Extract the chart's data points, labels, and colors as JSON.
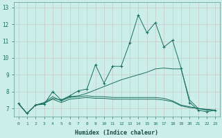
{
  "xlabel": "Humidex (Indice chaleur)",
  "background_color": "#cceee8",
  "grid_color": "#b8d8d4",
  "line_color": "#1a7060",
  "xlim": [
    -0.5,
    23.5
  ],
  "ylim": [
    6.5,
    13.3
  ],
  "lines": [
    {
      "x": [
        0,
        1,
        2,
        3,
        4,
        5,
        6,
        7,
        8,
        9,
        10,
        11,
        12,
        13,
        14,
        15,
        16,
        17,
        18,
        19,
        20,
        21,
        22,
        23
      ],
      "y": [
        7.3,
        6.7,
        7.2,
        7.25,
        8.0,
        7.5,
        7.75,
        8.05,
        8.15,
        9.6,
        8.5,
        9.5,
        9.5,
        10.9,
        12.55,
        11.5,
        12.1,
        10.65,
        11.05,
        9.4,
        7.35,
        6.9,
        6.8,
        6.9
      ],
      "marker": "+"
    },
    {
      "x": [
        0,
        1,
        2,
        3,
        4,
        5,
        6,
        7,
        8,
        9,
        10,
        11,
        12,
        13,
        14,
        15,
        16,
        17,
        18,
        19,
        20,
        21,
        22,
        23
      ],
      "y": [
        7.3,
        6.7,
        7.2,
        7.3,
        7.55,
        7.35,
        7.55,
        7.6,
        7.65,
        7.6,
        7.6,
        7.55,
        7.55,
        7.55,
        7.55,
        7.55,
        7.55,
        7.5,
        7.4,
        7.15,
        7.05,
        7.0,
        6.9,
        6.9
      ],
      "marker": null
    },
    {
      "x": [
        0,
        1,
        2,
        3,
        4,
        5,
        6,
        7,
        8,
        9,
        10,
        11,
        12,
        13,
        14,
        15,
        16,
        17,
        18,
        19,
        20,
        21,
        22,
        23
      ],
      "y": [
        7.3,
        6.7,
        7.2,
        7.3,
        7.6,
        7.5,
        7.7,
        7.75,
        7.9,
        8.1,
        8.3,
        8.5,
        8.7,
        8.85,
        9.0,
        9.15,
        9.35,
        9.4,
        9.35,
        9.35,
        7.5,
        7.0,
        6.9,
        6.9
      ],
      "marker": null
    },
    {
      "x": [
        0,
        1,
        2,
        3,
        4,
        5,
        6,
        7,
        8,
        9,
        10,
        11,
        12,
        13,
        14,
        15,
        16,
        17,
        18,
        19,
        20,
        21,
        22,
        23
      ],
      "y": [
        7.3,
        6.7,
        7.2,
        7.35,
        7.7,
        7.45,
        7.65,
        7.7,
        7.75,
        7.7,
        7.7,
        7.65,
        7.65,
        7.65,
        7.65,
        7.65,
        7.65,
        7.6,
        7.45,
        7.2,
        7.1,
        7.0,
        6.95,
        6.9
      ],
      "marker": null
    }
  ]
}
